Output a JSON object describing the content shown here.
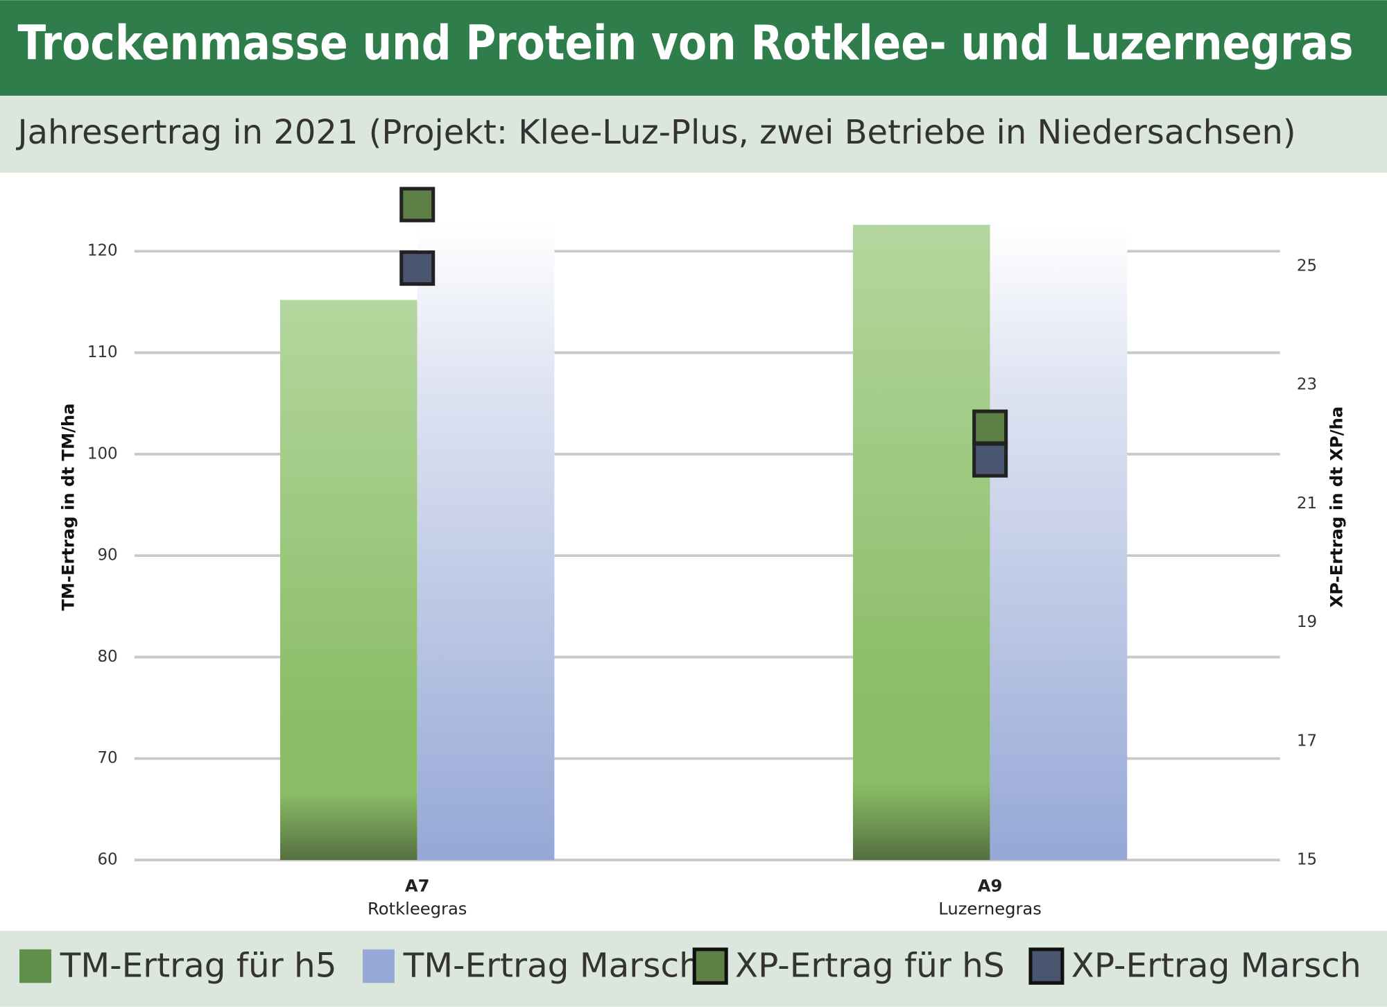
{
  "chart_data": {
    "type": "bar",
    "title": "Trockenmasse und Protein von Rotklee- und Luzernegras",
    "subtitle": "Jahresertrag in 2021 (Projekt: Klee-Luz-Plus, zwei Betriebe in Niedersachsen)",
    "categories": [
      "A7",
      "A9"
    ],
    "category_labels": [
      "Rotkleegras",
      "Luzernegras"
    ],
    "y_label": "TM-Ertrag in dt TM/ha",
    "y2_label": "XP-Ertrag in dt XP/ha",
    "ylim": [
      60,
      126
    ],
    "yticks": [
      60,
      70,
      80,
      90,
      100,
      110,
      120
    ],
    "y2lim": [
      15,
      26.28
    ],
    "y2ticks": [
      15,
      17,
      19,
      21,
      23,
      25
    ],
    "grid": true,
    "series": [
      {
        "name": "TM-Ertrag für h5",
        "type": "bar",
        "color": "#5f8f48",
        "values": [
          115.2,
          122.6
        ]
      },
      {
        "name": "TM-Ertrag Marsch",
        "type": "bar",
        "color": "#95a8d6",
        "values": [
          122.8,
          122.5
        ]
      },
      {
        "name": "XP-Ertrag für hS",
        "type": "scatter",
        "axis": "y2",
        "color": "#5e8046",
        "values": [
          26.04,
          22.29
        ]
      },
      {
        "name": "XP-Ertrag Marsch",
        "type": "scatter",
        "axis": "y2",
        "color": "#4a5670",
        "values": [
          24.97,
          21.74
        ]
      }
    ]
  }
}
